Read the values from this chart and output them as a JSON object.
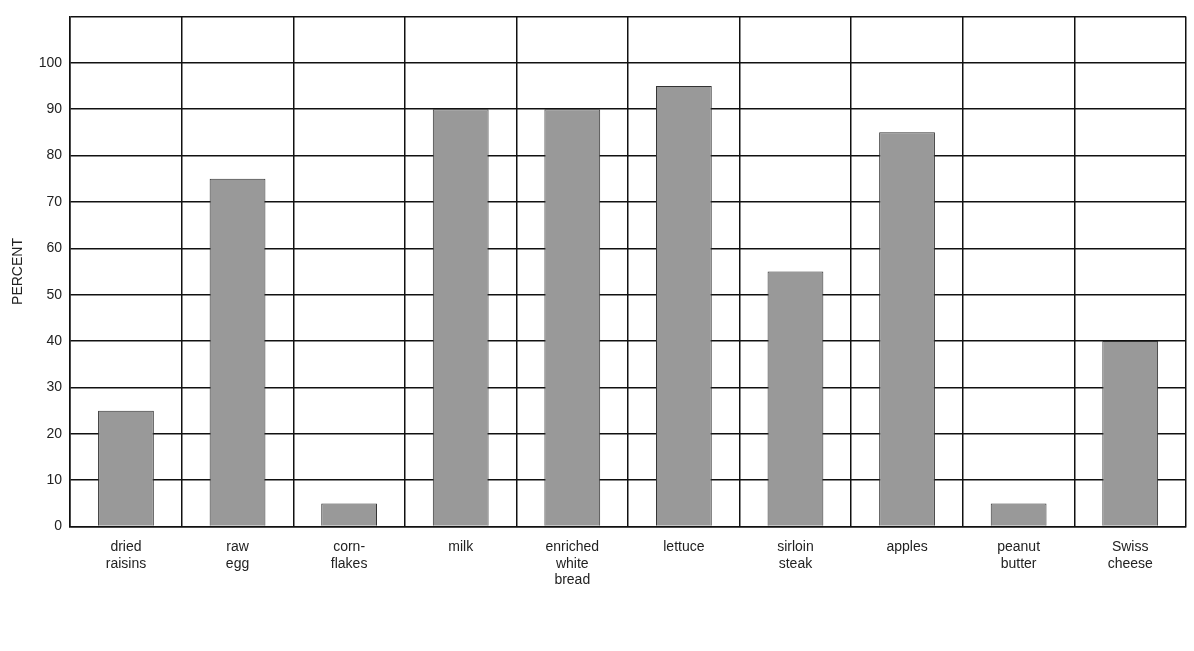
{
  "chart_data": {
    "type": "bar",
    "ylabel": "PERCENT",
    "categories": [
      "dried\nraisins",
      "raw\negg",
      "corn-\nflakes",
      "milk",
      "enriched\nwhite\nbread",
      "lettuce",
      "sirloin\nsteak",
      "apples",
      "peanut\nbutter",
      "Swiss\ncheese"
    ],
    "values": [
      25,
      75,
      5,
      90,
      90,
      95,
      55,
      85,
      5,
      40
    ],
    "color": "#999999",
    "ylim": [
      0,
      110
    ],
    "yticks": [
      0,
      10,
      20,
      30,
      40,
      50,
      60,
      70,
      80,
      90,
      100,
      {
        "value": 110,
        "label": null
      }
    ],
    "grid": true
  }
}
